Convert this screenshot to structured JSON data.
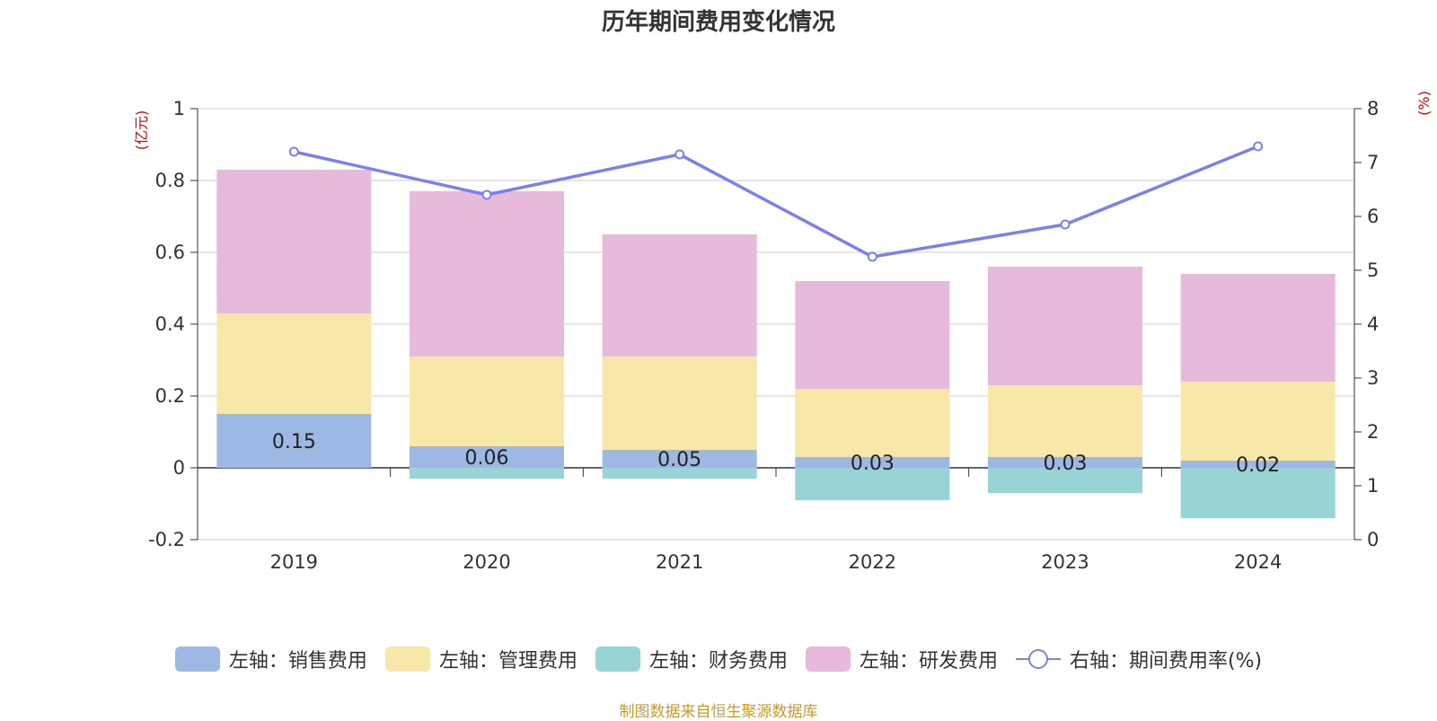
{
  "chart_data": {
    "type": "bar",
    "title": "历年期间费用变化情况",
    "categories": [
      "2019",
      "2020",
      "2021",
      "2022",
      "2023",
      "2024"
    ],
    "left_axis": {
      "unit": "(亿元)",
      "ylim": [
        -0.2,
        1
      ],
      "ticks": [
        -0.2,
        0,
        0.2,
        0.4,
        0.6,
        0.8,
        1
      ],
      "tick_labels": [
        "-0.2",
        "0",
        "0.2",
        "0.4",
        "0.6",
        "0.8",
        "1"
      ]
    },
    "right_axis": {
      "unit": "(%)",
      "ylim": [
        0,
        8
      ],
      "ticks": [
        0,
        1,
        2,
        3,
        4,
        5,
        6,
        7,
        8
      ]
    },
    "series": [
      {
        "name": "左轴：销售费用",
        "type": "bar",
        "color": "#9db8e2",
        "values": [
          0.15,
          0.06,
          0.05,
          0.03,
          0.03,
          0.02
        ],
        "labels": [
          "0.15",
          "0.06",
          "0.05",
          "0.03",
          "0.03",
          "0.02"
        ]
      },
      {
        "name": "左轴：管理费用",
        "type": "bar",
        "color": "#f7e7a8",
        "values": [
          0.28,
          0.25,
          0.26,
          0.19,
          0.2,
          0.22
        ]
      },
      {
        "name": "左轴：财务费用",
        "type": "bar",
        "color": "#98d4d4",
        "values": [
          0.0,
          -0.03,
          -0.03,
          -0.09,
          -0.07,
          -0.14
        ]
      },
      {
        "name": "左轴：研发费用",
        "type": "bar",
        "color": "#e7b9da",
        "values": [
          0.4,
          0.46,
          0.34,
          0.3,
          0.33,
          0.3
        ]
      },
      {
        "name": "右轴：期间费用率(%)",
        "type": "line",
        "color": "#7b7ff0",
        "values": [
          7.2,
          6.4,
          7.15,
          5.25,
          5.85,
          7.3
        ]
      }
    ]
  },
  "source": "制图数据来自恒生聚源数据库"
}
